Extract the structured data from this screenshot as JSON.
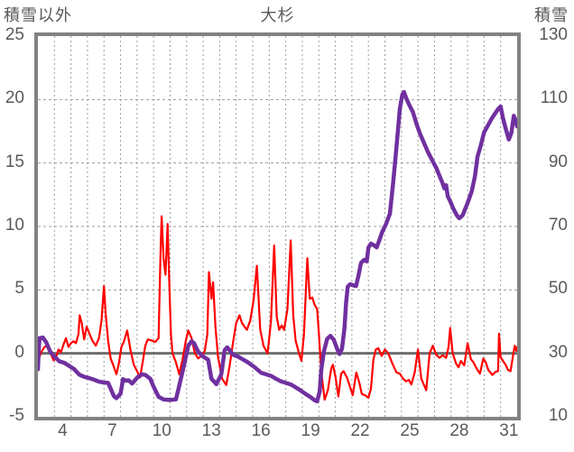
{
  "header": {
    "left_axis_title": "積雪以外",
    "title": "大杉",
    "right_axis_title": "積雪"
  },
  "left_axis": {
    "min": -5,
    "max": 25,
    "ticks": [
      25,
      20,
      15,
      10,
      5,
      0,
      -5
    ]
  },
  "right_axis": {
    "min": 10,
    "max": 130,
    "ticks": [
      130,
      110,
      90,
      70,
      50,
      30,
      10
    ]
  },
  "x_axis": {
    "day_start": 3,
    "day_end": 32,
    "ticks": [
      4,
      7,
      10,
      13,
      16,
      19,
      22,
      25,
      28,
      31
    ]
  },
  "colors": {
    "red_line": "#ff0000",
    "purple_line": "#7030a0",
    "grid": "#9b9b9b",
    "frame": "#828282",
    "text": "#5a5a5a",
    "zero_line": "#6e6e6e"
  },
  "chart_data": {
    "type": "line",
    "title": "大杉",
    "xlabel_ticks": [
      4,
      7,
      10,
      13,
      16,
      19,
      22,
      25,
      28,
      31
    ],
    "x_range": [
      3,
      32
    ],
    "left_ylim": [
      -5,
      25
    ],
    "right_ylim": [
      10,
      130
    ],
    "grid": "on",
    "legend": "none",
    "series": [
      {
        "name": "積雪以外",
        "axis": "left",
        "color": "#ff0000",
        "points": [
          [
            3.0,
            -0.6
          ],
          [
            3.2,
            0.1
          ],
          [
            3.4,
            0.5
          ],
          [
            3.6,
            0.6
          ],
          [
            3.8,
            -0.1
          ],
          [
            3.95,
            -0.55
          ],
          [
            4.1,
            -0.3
          ],
          [
            4.25,
            0.3
          ],
          [
            4.4,
            0.1
          ],
          [
            4.55,
            0.7
          ],
          [
            4.7,
            1.2
          ],
          [
            4.85,
            0.5
          ],
          [
            5.0,
            0.8
          ],
          [
            5.15,
            0.95
          ],
          [
            5.3,
            0.8
          ],
          [
            5.45,
            1.5
          ],
          [
            5.53,
            3.0
          ],
          [
            5.65,
            2.4
          ],
          [
            5.8,
            1.1
          ],
          [
            5.95,
            2.1
          ],
          [
            6.1,
            1.6
          ],
          [
            6.3,
            1.0
          ],
          [
            6.5,
            0.6
          ],
          [
            6.7,
            1.2
          ],
          [
            6.85,
            2.6
          ],
          [
            7.0,
            5.3
          ],
          [
            7.1,
            3.1
          ],
          [
            7.25,
            1.0
          ],
          [
            7.4,
            -0.4
          ],
          [
            7.55,
            -0.9
          ],
          [
            7.75,
            -1.65
          ],
          [
            7.9,
            -0.8
          ],
          [
            8.05,
            0.5
          ],
          [
            8.2,
            0.9
          ],
          [
            8.4,
            1.8
          ],
          [
            8.6,
            0.3
          ],
          [
            8.8,
            -0.9
          ],
          [
            9.0,
            -1.4
          ],
          [
            9.18,
            -1.9
          ],
          [
            9.35,
            -0.6
          ],
          [
            9.5,
            0.6
          ],
          [
            9.65,
            1.1
          ],
          [
            9.9,
            1.0
          ],
          [
            10.1,
            0.9
          ],
          [
            10.3,
            1.2
          ],
          [
            10.42,
            8.0
          ],
          [
            10.49,
            10.8
          ],
          [
            10.6,
            7.5
          ],
          [
            10.72,
            6.2
          ],
          [
            10.85,
            10.2
          ],
          [
            10.95,
            5.5
          ],
          [
            11.05,
            1.5
          ],
          [
            11.15,
            0.0
          ],
          [
            11.35,
            -0.7
          ],
          [
            11.55,
            -1.65
          ],
          [
            11.75,
            -0.5
          ],
          [
            11.95,
            1.0
          ],
          [
            12.1,
            1.8
          ],
          [
            12.3,
            1.2
          ],
          [
            12.5,
            0.0
          ],
          [
            12.7,
            -0.4
          ],
          [
            12.9,
            -0.2
          ],
          [
            13.1,
            0.2
          ],
          [
            13.25,
            1.5
          ],
          [
            13.35,
            6.4
          ],
          [
            13.5,
            4.3
          ],
          [
            13.6,
            5.6
          ],
          [
            13.75,
            2.0
          ],
          [
            13.9,
            -0.3
          ],
          [
            14.15,
            -2.0
          ],
          [
            14.4,
            -2.5
          ],
          [
            14.6,
            -1.0
          ],
          [
            14.8,
            0.8
          ],
          [
            15.0,
            2.4
          ],
          [
            15.2,
            3.0
          ],
          [
            15.35,
            2.4
          ],
          [
            15.5,
            2.1
          ],
          [
            15.65,
            1.85
          ],
          [
            15.85,
            2.6
          ],
          [
            16.05,
            4.2
          ],
          [
            16.25,
            6.9
          ],
          [
            16.45,
            1.9
          ],
          [
            16.65,
            0.6
          ],
          [
            16.9,
            0.0
          ],
          [
            17.1,
            2.5
          ],
          [
            17.3,
            8.5
          ],
          [
            17.45,
            2.9
          ],
          [
            17.6,
            1.85
          ],
          [
            17.75,
            2.2
          ],
          [
            17.9,
            1.85
          ],
          [
            18.1,
            3.5
          ],
          [
            18.3,
            8.9
          ],
          [
            18.45,
            3.0
          ],
          [
            18.6,
            1.0
          ],
          [
            18.8,
            0.0
          ],
          [
            18.95,
            -0.6
          ],
          [
            19.1,
            1.5
          ],
          [
            19.3,
            7.5
          ],
          [
            19.45,
            4.3
          ],
          [
            19.6,
            4.4
          ],
          [
            19.75,
            3.8
          ],
          [
            19.9,
            3.5
          ],
          [
            20.0,
            1.6
          ],
          [
            20.15,
            -1.5
          ],
          [
            20.35,
            -3.65
          ],
          [
            20.55,
            -2.9
          ],
          [
            20.75,
            -1.2
          ],
          [
            20.85,
            -0.9
          ],
          [
            21.0,
            -1.8
          ],
          [
            21.18,
            -3.4
          ],
          [
            21.35,
            -1.6
          ],
          [
            21.5,
            -1.4
          ],
          [
            21.7,
            -1.9
          ],
          [
            21.85,
            -2.5
          ],
          [
            22.05,
            -3.3
          ],
          [
            22.27,
            -1.5
          ],
          [
            22.45,
            -2.3
          ],
          [
            22.6,
            -3.2
          ],
          [
            22.8,
            -3.3
          ],
          [
            23.0,
            -3.5
          ],
          [
            23.15,
            -2.8
          ],
          [
            23.3,
            -0.5
          ],
          [
            23.45,
            0.3
          ],
          [
            23.6,
            0.4
          ],
          [
            23.8,
            -0.2
          ],
          [
            24.0,
            0.3
          ],
          [
            24.2,
            0.0
          ],
          [
            24.45,
            -0.8
          ],
          [
            24.7,
            -1.5
          ],
          [
            24.9,
            -1.6
          ],
          [
            25.1,
            -2.0
          ],
          [
            25.27,
            -2.2
          ],
          [
            25.45,
            -2.1
          ],
          [
            25.6,
            -2.45
          ],
          [
            25.8,
            -1.5
          ],
          [
            26.0,
            0.3
          ],
          [
            26.2,
            -2.0
          ],
          [
            26.5,
            -2.9
          ],
          [
            26.7,
            0.0
          ],
          [
            26.9,
            0.6
          ],
          [
            27.1,
            -0.1
          ],
          [
            27.3,
            -0.35
          ],
          [
            27.5,
            -0.15
          ],
          [
            27.7,
            -0.35
          ],
          [
            27.85,
            0.5
          ],
          [
            27.95,
            2.0
          ],
          [
            28.1,
            0.0
          ],
          [
            28.3,
            -0.8
          ],
          [
            28.45,
            -1.1
          ],
          [
            28.6,
            -0.6
          ],
          [
            28.8,
            -0.95
          ],
          [
            29.0,
            0.8
          ],
          [
            29.2,
            -0.45
          ],
          [
            29.35,
            -0.7
          ],
          [
            29.55,
            -1.2
          ],
          [
            29.75,
            -1.6
          ],
          [
            29.95,
            -0.4
          ],
          [
            30.1,
            -0.7
          ],
          [
            30.25,
            -1.3
          ],
          [
            30.5,
            -1.7
          ],
          [
            30.7,
            -1.45
          ],
          [
            30.85,
            -1.4
          ],
          [
            30.9,
            1.55
          ],
          [
            31.0,
            -0.3
          ],
          [
            31.15,
            -0.6
          ],
          [
            31.3,
            -0.9
          ],
          [
            31.45,
            -1.3
          ],
          [
            31.6,
            -1.4
          ],
          [
            31.75,
            -0.2
          ],
          [
            31.85,
            0.6
          ],
          [
            31.95,
            0.2
          ],
          [
            32.0,
            0.5
          ]
        ]
      },
      {
        "name": "積雪",
        "axis": "right",
        "color": "#7030a0",
        "points": [
          [
            3.0,
            25
          ],
          [
            3.05,
            31
          ],
          [
            3.1,
            34.8
          ],
          [
            3.3,
            35
          ],
          [
            3.5,
            33.5
          ],
          [
            3.75,
            30.5
          ],
          [
            4.0,
            29
          ],
          [
            4.3,
            27.5
          ],
          [
            4.6,
            27
          ],
          [
            4.9,
            26
          ],
          [
            5.2,
            25
          ],
          [
            5.5,
            23.3
          ],
          [
            5.8,
            22.6
          ],
          [
            6.1,
            22.2
          ],
          [
            6.4,
            21.7
          ],
          [
            6.7,
            21.1
          ],
          [
            7.0,
            20.8
          ],
          [
            7.25,
            20.7
          ],
          [
            7.45,
            18.3
          ],
          [
            7.6,
            16.5
          ],
          [
            7.75,
            15.9
          ],
          [
            8.0,
            17.3
          ],
          [
            8.15,
            21.9
          ],
          [
            8.3,
            21.4
          ],
          [
            8.5,
            21.5
          ],
          [
            8.7,
            20.5
          ],
          [
            9.0,
            22.3
          ],
          [
            9.3,
            23.4
          ],
          [
            9.5,
            23.2
          ],
          [
            9.8,
            22.0
          ],
          [
            10.0,
            19.5
          ],
          [
            10.3,
            16.3
          ],
          [
            10.6,
            15.5
          ],
          [
            11.0,
            15.3
          ],
          [
            11.35,
            15.5
          ],
          [
            11.5,
            18.6
          ],
          [
            11.8,
            25.3
          ],
          [
            12.1,
            32.4
          ],
          [
            12.3,
            33.8
          ],
          [
            12.45,
            33.2
          ],
          [
            12.7,
            30.5
          ],
          [
            13.0,
            29
          ],
          [
            13.3,
            28
          ],
          [
            13.5,
            22
          ],
          [
            13.8,
            20.3
          ],
          [
            14.1,
            23.4
          ],
          [
            14.3,
            31
          ],
          [
            14.45,
            31.9
          ],
          [
            14.6,
            31
          ],
          [
            14.8,
            29.6
          ],
          [
            15.1,
            29
          ],
          [
            15.4,
            28.1
          ],
          [
            15.7,
            27.2
          ],
          [
            16.1,
            25.7
          ],
          [
            16.5,
            23.9
          ],
          [
            16.8,
            23.4
          ],
          [
            17.1,
            22.9
          ],
          [
            17.4,
            22
          ],
          [
            17.7,
            21.2
          ],
          [
            18.0,
            20.7
          ],
          [
            18.3,
            20.2
          ],
          [
            18.6,
            19.3
          ],
          [
            18.9,
            18.3
          ],
          [
            19.2,
            17.2
          ],
          [
            19.5,
            16.2
          ],
          [
            19.75,
            15.2
          ],
          [
            19.9,
            14.9
          ],
          [
            20.05,
            18
          ],
          [
            20.15,
            24.8
          ],
          [
            20.3,
            30.5
          ],
          [
            20.5,
            34.5
          ],
          [
            20.7,
            35.5
          ],
          [
            20.9,
            34.3
          ],
          [
            21.1,
            31.5
          ],
          [
            21.25,
            29.8
          ],
          [
            21.4,
            31.4
          ],
          [
            21.55,
            38
          ],
          [
            21.65,
            46
          ],
          [
            21.75,
            51
          ],
          [
            21.9,
            51.8
          ],
          [
            22.1,
            51.4
          ],
          [
            22.25,
            51.2
          ],
          [
            22.4,
            54.5
          ],
          [
            22.55,
            58.5
          ],
          [
            22.75,
            59.5
          ],
          [
            22.9,
            59
          ],
          [
            23.0,
            63.3
          ],
          [
            23.15,
            64.6
          ],
          [
            23.35,
            64
          ],
          [
            23.5,
            63.4
          ],
          [
            23.65,
            65.5
          ],
          [
            23.85,
            68.5
          ],
          [
            24.05,
            70.5
          ],
          [
            24.3,
            74
          ],
          [
            24.5,
            84
          ],
          [
            24.7,
            95
          ],
          [
            24.9,
            107
          ],
          [
            25.05,
            111.5
          ],
          [
            25.15,
            112.4
          ],
          [
            25.3,
            110.3
          ],
          [
            25.5,
            108
          ],
          [
            25.7,
            106
          ],
          [
            25.9,
            102.5
          ],
          [
            26.1,
            99.5
          ],
          [
            26.35,
            96.5
          ],
          [
            26.6,
            93.5
          ],
          [
            26.85,
            91
          ],
          [
            27.1,
            88.5
          ],
          [
            27.3,
            86
          ],
          [
            27.5,
            83.5
          ],
          [
            27.6,
            82
          ],
          [
            27.7,
            83
          ],
          [
            27.8,
            79.5
          ],
          [
            27.95,
            78
          ],
          [
            28.15,
            75.5
          ],
          [
            28.35,
            73.5
          ],
          [
            28.5,
            72.6
          ],
          [
            28.7,
            73.5
          ],
          [
            29.0,
            77.4
          ],
          [
            29.25,
            81
          ],
          [
            29.45,
            85.9
          ],
          [
            29.6,
            92
          ],
          [
            29.8,
            95.5
          ],
          [
            30.0,
            99.7
          ],
          [
            30.2,
            101.5
          ],
          [
            30.45,
            103.9
          ],
          [
            30.65,
            105.5
          ],
          [
            30.85,
            107
          ],
          [
            31.0,
            107.8
          ],
          [
            31.15,
            104
          ],
          [
            31.3,
            101
          ],
          [
            31.5,
            97.4
          ],
          [
            31.65,
            99.5
          ],
          [
            31.8,
            104.9
          ],
          [
            31.9,
            103.5
          ],
          [
            32.0,
            101.5
          ]
        ]
      }
    ]
  }
}
